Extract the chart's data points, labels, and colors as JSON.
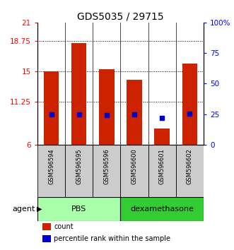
{
  "title": "GDS5035 / 29715",
  "samples": [
    "GSM596594",
    "GSM596595",
    "GSM596596",
    "GSM596600",
    "GSM596601",
    "GSM596602"
  ],
  "counts": [
    15.0,
    18.5,
    15.3,
    14.0,
    8.0,
    16.0
  ],
  "percentiles": [
    25,
    25,
    24,
    25,
    22,
    25.5
  ],
  "ylim_left": [
    6,
    21
  ],
  "ylim_right": [
    0,
    100
  ],
  "yticks_left": [
    6,
    11.25,
    15,
    18.75,
    21
  ],
  "ytick_labels_left": [
    "6",
    "11.25",
    "15",
    "18.75",
    "21"
  ],
  "yticks_right": [
    0,
    25,
    50,
    75,
    100
  ],
  "ytick_labels_right": [
    "0",
    "25",
    "50",
    "75",
    "100%"
  ],
  "bar_color": "#cc2200",
  "dot_color": "#0000cc",
  "grid_lines": [
    11.25,
    15,
    18.75
  ],
  "groups": [
    {
      "label": "PBS",
      "samples": [
        0,
        1,
        2
      ],
      "color": "#aaffaa"
    },
    {
      "label": "dexamethasone",
      "samples": [
        3,
        4,
        5
      ],
      "color": "#33cc33"
    }
  ],
  "agent_label": "agent",
  "legend_items": [
    {
      "color": "#cc2200",
      "label": "count"
    },
    {
      "color": "#0000cc",
      "label": "percentile rank within the sample"
    }
  ],
  "title_fontsize": 10,
  "tick_fontsize": 7.5,
  "sample_fontsize": 6,
  "group_fontsize": 8,
  "legend_fontsize": 7,
  "sample_box_color": "#cccccc",
  "background_color": "#ffffff"
}
